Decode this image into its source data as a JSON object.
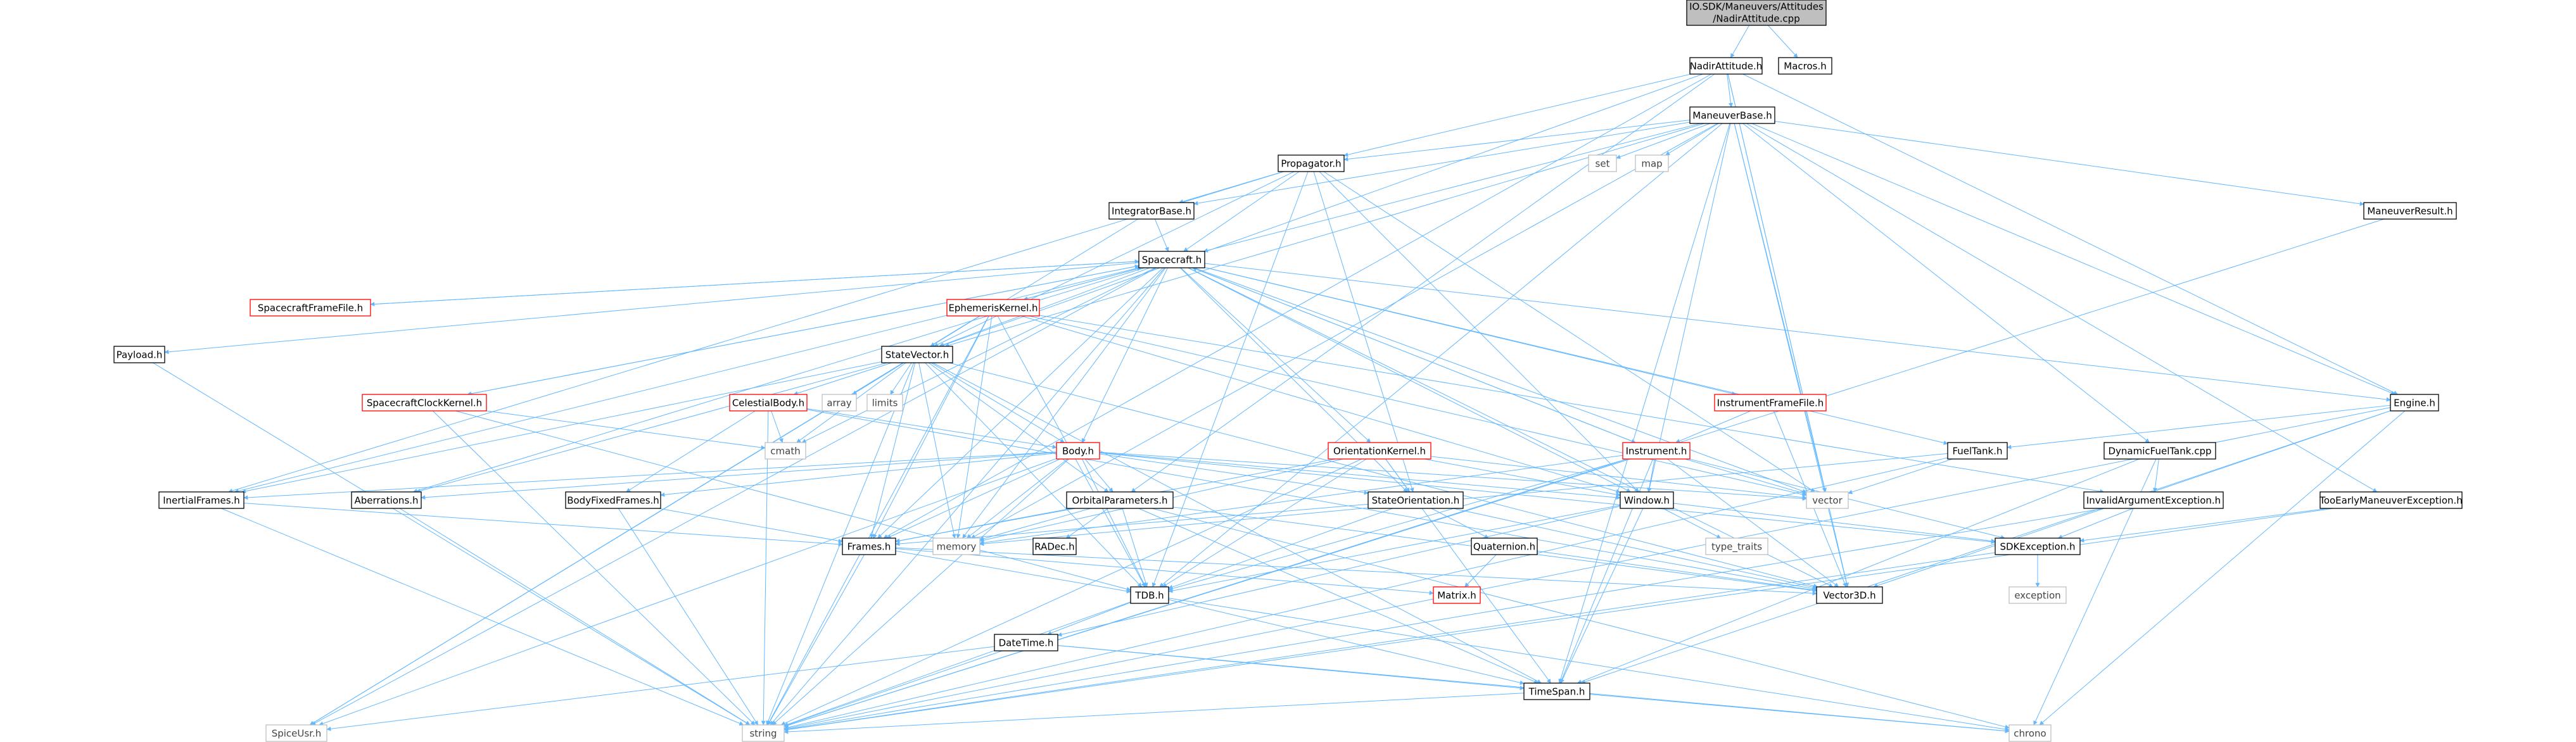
{
  "diagram": {
    "type": "include-dependency-graph",
    "colors": {
      "root_fill": "#bfbfbf",
      "node_border": "#000000",
      "linked_border": "#ff0000",
      "system_border": "#bfbfbf",
      "edge": "#63b8ff"
    },
    "nodes": [
      {
        "id": "root",
        "label": "IO.SDK/Maneuvers/Attitudes",
        "label2": "/NadirAttitude.cpp",
        "kind": "root"
      },
      {
        "id": "nadir",
        "label": "NadirAttitude.h",
        "kind": "normal"
      },
      {
        "id": "macros",
        "label": "Macros.h",
        "kind": "normal"
      },
      {
        "id": "mbase",
        "label": "ManeuverBase.h",
        "kind": "normal"
      },
      {
        "id": "set",
        "label": "set",
        "kind": "system"
      },
      {
        "id": "map",
        "label": "map",
        "kind": "system"
      },
      {
        "id": "propagator",
        "label": "Propagator.h",
        "kind": "normal"
      },
      {
        "id": "intbase",
        "label": "IntegratorBase.h",
        "kind": "normal"
      },
      {
        "id": "spacecraft",
        "label": "Spacecraft.h",
        "kind": "normal"
      },
      {
        "id": "scframe",
        "label": "SpacecraftFrameFile.h",
        "kind": "linked"
      },
      {
        "id": "ephem",
        "label": "EphemerisKernel.h",
        "kind": "linked"
      },
      {
        "id": "payload",
        "label": "Payload.h",
        "kind": "normal"
      },
      {
        "id": "statevec",
        "label": "StateVector.h",
        "kind": "normal"
      },
      {
        "id": "scclock",
        "label": "SpacecraftClockKernel.h",
        "kind": "linked"
      },
      {
        "id": "celestial",
        "label": "CelestialBody.h",
        "kind": "linked"
      },
      {
        "id": "array",
        "label": "array",
        "kind": "system"
      },
      {
        "id": "limits",
        "label": "limits",
        "kind": "system"
      },
      {
        "id": "cmath",
        "label": "cmath",
        "kind": "system"
      },
      {
        "id": "body",
        "label": "Body.h",
        "kind": "linked"
      },
      {
        "id": "orientk",
        "label": "OrientationKernel.h",
        "kind": "linked"
      },
      {
        "id": "instrframe",
        "label": "InstrumentFrameFile.h",
        "kind": "linked"
      },
      {
        "id": "instrument",
        "label": "Instrument.h",
        "kind": "linked"
      },
      {
        "id": "fueltank",
        "label": "FuelTank.h",
        "kind": "normal"
      },
      {
        "id": "dynfuel",
        "label": "DynamicFuelTank.cpp",
        "kind": "normal"
      },
      {
        "id": "engine",
        "label": "Engine.h",
        "kind": "normal"
      },
      {
        "id": "mresult",
        "label": "ManeuverResult.h",
        "kind": "normal"
      },
      {
        "id": "inertial",
        "label": "InertialFrames.h",
        "kind": "normal"
      },
      {
        "id": "aberr",
        "label": "Aberrations.h",
        "kind": "normal"
      },
      {
        "id": "bodyfixed",
        "label": "BodyFixedFrames.h",
        "kind": "normal"
      },
      {
        "id": "orbital",
        "label": "OrbitalParameters.h",
        "kind": "normal"
      },
      {
        "id": "stateorient",
        "label": "StateOrientation.h",
        "kind": "normal"
      },
      {
        "id": "window",
        "label": "Window.h",
        "kind": "normal"
      },
      {
        "id": "vector",
        "label": "vector",
        "kind": "system"
      },
      {
        "id": "invarg",
        "label": "InvalidArgumentException.h",
        "kind": "normal"
      },
      {
        "id": "tooearly",
        "label": "TooEarlyManeuverException.h",
        "kind": "normal"
      },
      {
        "id": "memory",
        "label": "memory",
        "kind": "system"
      },
      {
        "id": "radec",
        "label": "RADec.h",
        "kind": "normal"
      },
      {
        "id": "quaternion",
        "label": "Quaternion.h",
        "kind": "normal"
      },
      {
        "id": "typetraits",
        "label": "type_traits",
        "kind": "system"
      },
      {
        "id": "sdkexc",
        "label": "SDKException.h",
        "kind": "normal"
      },
      {
        "id": "frames",
        "label": "Frames.h",
        "kind": "normal"
      },
      {
        "id": "matrix",
        "label": "Matrix.h",
        "kind": "linked"
      },
      {
        "id": "exception",
        "label": "exception",
        "kind": "system"
      },
      {
        "id": "tdb",
        "label": "TDB.h",
        "kind": "normal"
      },
      {
        "id": "vector3d",
        "label": "Vector3D.h",
        "kind": "normal"
      },
      {
        "id": "datetime",
        "label": "DateTime.h",
        "kind": "normal"
      },
      {
        "id": "timespan",
        "label": "TimeSpan.h",
        "kind": "normal"
      },
      {
        "id": "spiceusr",
        "label": "SpiceUsr.h",
        "kind": "system"
      },
      {
        "id": "string",
        "label": "string",
        "kind": "system"
      },
      {
        "id": "chrono",
        "label": "chrono",
        "kind": "system"
      }
    ],
    "edges": [
      [
        "root",
        "nadir"
      ],
      [
        "root",
        "macros"
      ],
      [
        "nadir",
        "mbase"
      ],
      [
        "nadir",
        "propagator"
      ],
      [
        "nadir",
        "engine"
      ],
      [
        "nadir",
        "vector3d"
      ],
      [
        "nadir",
        "statevec"
      ],
      [
        "nadir",
        "orbital"
      ],
      [
        "nadir",
        "vector"
      ],
      [
        "nadir",
        "frames"
      ],
      [
        "mbase",
        "set"
      ],
      [
        "mbase",
        "map"
      ],
      [
        "mbase",
        "propagator"
      ],
      [
        "mbase",
        "spacecraft"
      ],
      [
        "mbase",
        "engine"
      ],
      [
        "mbase",
        "mresult"
      ],
      [
        "mbase",
        "dynfuel"
      ],
      [
        "mbase",
        "tooearly"
      ],
      [
        "mbase",
        "window"
      ],
      [
        "mbase",
        "tdb"
      ],
      [
        "mbase",
        "timespan"
      ],
      [
        "mbase",
        "vector3d"
      ],
      [
        "mbase",
        "vector"
      ],
      [
        "mbase",
        "memory"
      ],
      [
        "mbase",
        "statevec"
      ],
      [
        "mbase",
        "intbase"
      ],
      [
        "propagator",
        "intbase"
      ],
      [
        "propagator",
        "spacecraft"
      ],
      [
        "propagator",
        "statevec"
      ],
      [
        "propagator",
        "window"
      ],
      [
        "propagator",
        "stateorient"
      ],
      [
        "propagator",
        "vector"
      ],
      [
        "propagator",
        "inertial"
      ],
      [
        "propagator",
        "tdb"
      ],
      [
        "intbase",
        "spacecraft"
      ],
      [
        "intbase",
        "statevec"
      ],
      [
        "spacecraft",
        "scframe"
      ],
      [
        "spacecraft",
        "ephem"
      ],
      [
        "spacecraft",
        "payload"
      ],
      [
        "spacecraft",
        "statevec"
      ],
      [
        "spacecraft",
        "scclock"
      ],
      [
        "spacecraft",
        "body"
      ],
      [
        "spacecraft",
        "orientk"
      ],
      [
        "spacecraft",
        "instrframe"
      ],
      [
        "spacecraft",
        "instrument"
      ],
      [
        "spacecraft",
        "fueltank"
      ],
      [
        "spacecraft",
        "engine"
      ],
      [
        "spacecraft",
        "inertial"
      ],
      [
        "spacecraft",
        "aberr"
      ],
      [
        "spacecraft",
        "stateorient"
      ],
      [
        "spacecraft",
        "window"
      ],
      [
        "spacecraft",
        "vector"
      ],
      [
        "spacecraft",
        "memory"
      ],
      [
        "spacecraft",
        "string"
      ],
      [
        "spacecraft",
        "vector3d"
      ],
      [
        "spacecraft",
        "frames"
      ],
      [
        "spacecraft",
        "cmath"
      ],
      [
        "spacecraft",
        "spiceusr"
      ],
      [
        "scframe",
        "spacecraft"
      ],
      [
        "scclock",
        "spacecraft"
      ],
      [
        "ephem",
        "spacecraft"
      ],
      [
        "instrument",
        "spacecraft"
      ],
      [
        "ephem",
        "statevec"
      ],
      [
        "ephem",
        "tdb"
      ],
      [
        "ephem",
        "window"
      ],
      [
        "ephem",
        "invarg"
      ],
      [
        "ephem",
        "memory"
      ],
      [
        "ephem",
        "vector"
      ],
      [
        "ephem",
        "string"
      ],
      [
        "ephem",
        "frames"
      ],
      [
        "ephem",
        "spiceusr"
      ],
      [
        "payload",
        "string"
      ],
      [
        "statevec",
        "celestial"
      ],
      [
        "statevec",
        "array"
      ],
      [
        "statevec",
        "limits"
      ],
      [
        "statevec",
        "cmath"
      ],
      [
        "statevec",
        "body"
      ],
      [
        "statevec",
        "orbital"
      ],
      [
        "statevec",
        "tdb"
      ],
      [
        "statevec",
        "vector3d"
      ],
      [
        "statevec",
        "frames"
      ],
      [
        "statevec",
        "memory"
      ],
      [
        "statevec",
        "aberr"
      ],
      [
        "statevec",
        "inertial"
      ],
      [
        "statevec",
        "timespan"
      ],
      [
        "statevec",
        "string"
      ],
      [
        "statevec",
        "spiceusr"
      ],
      [
        "scclock",
        "cmath"
      ],
      [
        "scclock",
        "tdb"
      ],
      [
        "scclock",
        "string"
      ],
      [
        "celestial",
        "body"
      ],
      [
        "celestial",
        "cmath"
      ],
      [
        "celestial",
        "bodyfixed"
      ],
      [
        "celestial",
        "vector3d"
      ],
      [
        "celestial",
        "string"
      ],
      [
        "body",
        "orbital"
      ],
      [
        "body",
        "stateorient"
      ],
      [
        "body",
        "window"
      ],
      [
        "body",
        "inertial"
      ],
      [
        "body",
        "aberr"
      ],
      [
        "body",
        "bodyfixed"
      ],
      [
        "body",
        "memory"
      ],
      [
        "body",
        "vector"
      ],
      [
        "body",
        "tdb"
      ],
      [
        "body",
        "frames"
      ],
      [
        "body",
        "string"
      ],
      [
        "body",
        "spiceusr"
      ],
      [
        "body",
        "sdkexc"
      ],
      [
        "orientk",
        "stateorient"
      ],
      [
        "orientk",
        "window"
      ],
      [
        "orientk",
        "tdb"
      ],
      [
        "orientk",
        "timespan"
      ],
      [
        "orientk",
        "memory"
      ],
      [
        "orientk",
        "vector"
      ],
      [
        "orientk",
        "string"
      ],
      [
        "orientk",
        "frames"
      ],
      [
        "instrframe",
        "instrument"
      ],
      [
        "instrframe",
        "vector3d"
      ],
      [
        "instrument",
        "window"
      ],
      [
        "instrument",
        "vector"
      ],
      [
        "instrument",
        "memory"
      ],
      [
        "instrument",
        "tdb"
      ],
      [
        "instrument",
        "timespan"
      ],
      [
        "instrument",
        "vector3d"
      ],
      [
        "instrument",
        "sdkexc"
      ],
      [
        "instrument",
        "string"
      ],
      [
        "fueltank",
        "vector"
      ],
      [
        "fueltank",
        "string"
      ],
      [
        "fueltank",
        "memory"
      ],
      [
        "dynfuel",
        "invarg"
      ],
      [
        "dynfuel",
        "timespan"
      ],
      [
        "dynfuel",
        "chrono"
      ],
      [
        "engine",
        "fueltank"
      ],
      [
        "engine",
        "vector3d"
      ],
      [
        "engine",
        "string"
      ],
      [
        "engine",
        "timespan"
      ],
      [
        "engine",
        "chrono"
      ],
      [
        "mresult",
        "string"
      ],
      [
        "inertial",
        "frames"
      ],
      [
        "inertial",
        "string"
      ],
      [
        "aberr",
        "string"
      ],
      [
        "bodyfixed",
        "frames"
      ],
      [
        "bodyfixed",
        "string"
      ],
      [
        "orbital",
        "radec"
      ],
      [
        "orbital",
        "frames"
      ],
      [
        "orbital",
        "tdb"
      ],
      [
        "orbital",
        "timespan"
      ],
      [
        "orbital",
        "vector3d"
      ],
      [
        "orbital",
        "memory"
      ],
      [
        "orbital",
        "chrono"
      ],
      [
        "stateorient",
        "quaternion"
      ],
      [
        "stateorient",
        "tdb"
      ],
      [
        "stateorient",
        "vector3d"
      ],
      [
        "stateorient",
        "frames"
      ],
      [
        "window",
        "tdb"
      ],
      [
        "window",
        "timespan"
      ],
      [
        "window",
        "typetraits"
      ],
      [
        "window",
        "datetime"
      ],
      [
        "window",
        "sdkexc"
      ],
      [
        "invarg",
        "sdkexc"
      ],
      [
        "invarg",
        "string"
      ],
      [
        "tooearly",
        "sdkexc"
      ],
      [
        "tooearly",
        "string"
      ],
      [
        "quaternion",
        "matrix"
      ],
      [
        "quaternion",
        "vector3d"
      ],
      [
        "sdkexc",
        "exception"
      ],
      [
        "sdkexc",
        "string"
      ],
      [
        "frames",
        "string"
      ],
      [
        "frames",
        "matrix"
      ],
      [
        "frames",
        "vector3d"
      ],
      [
        "frames",
        "tdb"
      ],
      [
        "tdb",
        "datetime"
      ],
      [
        "tdb",
        "timespan"
      ],
      [
        "tdb",
        "string"
      ],
      [
        "tdb",
        "chrono"
      ],
      [
        "datetime",
        "timespan"
      ],
      [
        "datetime",
        "string"
      ],
      [
        "datetime",
        "spiceusr"
      ],
      [
        "datetime",
        "chrono"
      ],
      [
        "timespan",
        "chrono"
      ],
      [
        "timespan",
        "string"
      ]
    ]
  }
}
